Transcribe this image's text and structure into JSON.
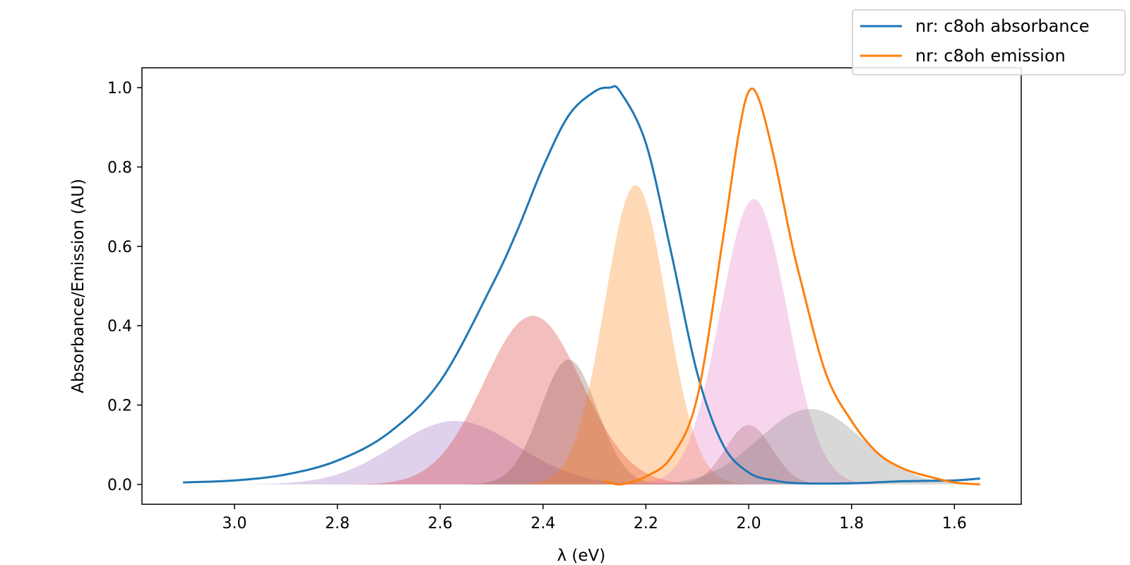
{
  "chart_data": {
    "type": "line",
    "title": "",
    "xlabel": "λ (eV)",
    "ylabel": "Absorbance/Emission (AU)",
    "x_inverted": true,
    "xlim": [
      3.18,
      1.47
    ],
    "ylim": [
      -0.05,
      1.05
    ],
    "xticks": [
      3.0,
      2.8,
      2.6,
      2.4,
      2.2,
      2.0,
      1.8,
      1.6
    ],
    "xtick_labels": [
      "3.0",
      "2.8",
      "2.6",
      "2.4",
      "2.2",
      "2.0",
      "1.8",
      "1.6"
    ],
    "yticks": [
      0.0,
      0.2,
      0.4,
      0.6,
      0.8,
      1.0
    ],
    "ytick_labels": [
      "0.0",
      "0.2",
      "0.4",
      "0.6",
      "0.8",
      "1.0"
    ],
    "grid": false,
    "legend_position": "top-right",
    "series": [
      {
        "name": "nr: c8oh absorbance",
        "color": "#1f77b4",
        "x": [
          3.1,
          3.0,
          2.9,
          2.8,
          2.7,
          2.6,
          2.5,
          2.45,
          2.4,
          2.35,
          2.3,
          2.27,
          2.25,
          2.2,
          2.15,
          2.1,
          2.05,
          2.0,
          1.95,
          1.9,
          1.8,
          1.7,
          1.6,
          1.55
        ],
        "y": [
          0.005,
          0.01,
          0.025,
          0.06,
          0.13,
          0.26,
          0.5,
          0.64,
          0.8,
          0.93,
          0.99,
          1.0,
          0.99,
          0.86,
          0.58,
          0.28,
          0.1,
          0.03,
          0.01,
          0.003,
          0.003,
          0.008,
          0.01,
          0.015
        ]
      },
      {
        "name": "nr: c8oh emission",
        "color": "#ff7f0e",
        "x": [
          2.28,
          2.25,
          2.2,
          2.15,
          2.1,
          2.05,
          2.02,
          2.0,
          1.98,
          1.95,
          1.92,
          1.9,
          1.85,
          1.8,
          1.75,
          1.7,
          1.65,
          1.6,
          1.55
        ],
        "y": [
          0.01,
          0.0,
          0.02,
          0.07,
          0.22,
          0.62,
          0.88,
          0.99,
          0.97,
          0.82,
          0.63,
          0.52,
          0.28,
          0.16,
          0.08,
          0.04,
          0.02,
          0.005,
          0.0
        ]
      }
    ],
    "components": [
      {
        "center": 2.57,
        "amplitude": 0.16,
        "sigma": 0.12,
        "color": "#9467bd"
      },
      {
        "center": 2.42,
        "amplitude": 0.425,
        "sigma": 0.095,
        "color": "#d62728"
      },
      {
        "center": 2.35,
        "amplitude": 0.315,
        "sigma": 0.055,
        "color": "#8c564b"
      },
      {
        "center": 2.22,
        "amplitude": 0.755,
        "sigma": 0.06,
        "color": "#ff7f0e"
      },
      {
        "center": 2.0,
        "amplitude": 0.15,
        "sigma": 0.045,
        "color": "#8c564b"
      },
      {
        "center": 1.99,
        "amplitude": 0.72,
        "sigma": 0.065,
        "color": "#e377c2"
      },
      {
        "center": 1.88,
        "amplitude": 0.19,
        "sigma": 0.1,
        "color": "#7f7f7f"
      }
    ]
  }
}
